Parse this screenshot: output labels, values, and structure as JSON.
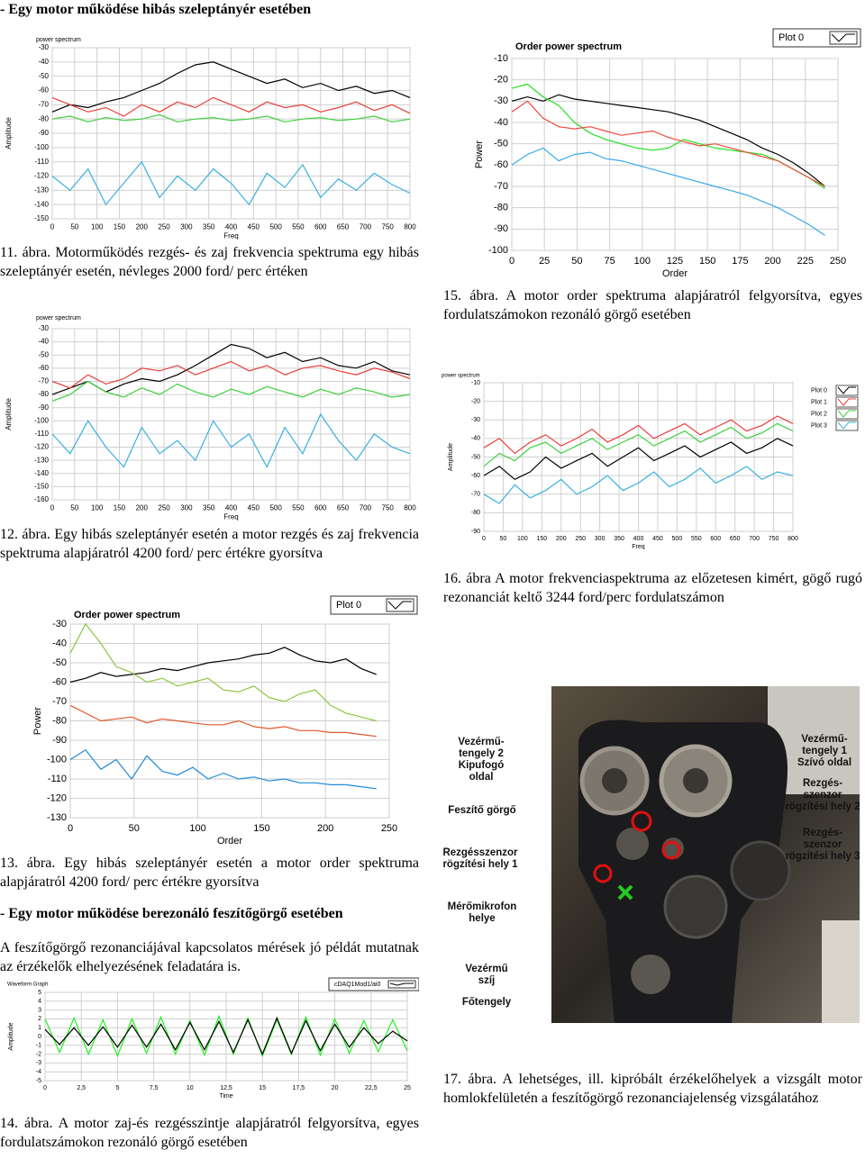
{
  "heading_1": "- Egy motor működése hibás szeleptányér esetében",
  "chart_data": [
    {
      "type": "line",
      "title": "power spectrum",
      "y_label": "Amplitude",
      "x_label": "Freq",
      "x": [
        0,
        40,
        80,
        120,
        160,
        200,
        240,
        280,
        320,
        360,
        400,
        440,
        480,
        520,
        560,
        600,
        640,
        680,
        720,
        760,
        800
      ],
      "xlim": [
        0,
        800
      ],
      "xticks": [
        0,
        50,
        100,
        150,
        200,
        250,
        300,
        350,
        400,
        450,
        500,
        550,
        600,
        650,
        700,
        750,
        800
      ],
      "ylim": [
        -150,
        -30
      ],
      "yticks": [
        -30,
        -40,
        -50,
        -60,
        -70,
        -80,
        -90,
        -100,
        -110,
        -120,
        -130,
        -140,
        -150
      ],
      "grid": true,
      "series": [
        {
          "color": "#000000",
          "values": [
            -75,
            -70,
            -72,
            -68,
            -65,
            -60,
            -55,
            -48,
            -42,
            -40,
            -45,
            -50,
            -55,
            -52,
            -58,
            -55,
            -60,
            -57,
            -62,
            -60,
            -65
          ]
        },
        {
          "color": "#e8403a",
          "values": [
            -65,
            -70,
            -75,
            -72,
            -78,
            -70,
            -75,
            -68,
            -72,
            -65,
            -70,
            -75,
            -68,
            -72,
            -70,
            -75,
            -72,
            -68,
            -74,
            -70,
            -76
          ]
        },
        {
          "color": "#3fcf3f",
          "values": [
            -80,
            -78,
            -82,
            -79,
            -81,
            -80,
            -77,
            -82,
            -80,
            -79,
            -81,
            -80,
            -78,
            -82,
            -80,
            -79,
            -81,
            -80,
            -78,
            -82,
            -80
          ]
        },
        {
          "color": "#3ab0e0",
          "values": [
            -120,
            -130,
            -115,
            -140,
            -125,
            -110,
            -135,
            -120,
            -130,
            -115,
            -125,
            -140,
            -118,
            -128,
            -112,
            -135,
            -122,
            -130,
            -118,
            -126,
            -132
          ]
        }
      ]
    },
    {
      "type": "line",
      "title": "Order power spectrum",
      "y_label": "Power",
      "x_label": "Order",
      "legend": [
        "Plot 0"
      ],
      "x": [
        0,
        12,
        24,
        36,
        48,
        60,
        72,
        84,
        96,
        108,
        120,
        132,
        144,
        156,
        168,
        180,
        192,
        204,
        216,
        228,
        240
      ],
      "xlim": [
        0,
        250
      ],
      "xticks": [
        0,
        25,
        50,
        75,
        100,
        125,
        150,
        175,
        200,
        225,
        250
      ],
      "ylim": [
        -100,
        -10
      ],
      "yticks": [
        -10,
        -20,
        -30,
        -40,
        -50,
        -60,
        -70,
        -80,
        -90,
        -100
      ],
      "grid": true,
      "series": [
        {
          "color": "#000000",
          "values": [
            -30,
            -28,
            -30,
            -27,
            -29,
            -30,
            -31,
            -32,
            -33,
            -34,
            -35,
            -37,
            -39,
            -42,
            -45,
            -48,
            -52,
            -55,
            -59,
            -64,
            -70
          ]
        },
        {
          "color": "#22e022",
          "values": [
            -24,
            -22,
            -28,
            -32,
            -40,
            -45,
            -48,
            -50,
            -52,
            -53,
            -52,
            -48,
            -50,
            -52,
            -53,
            -54,
            -55,
            -58,
            -62,
            -66,
            -71
          ]
        },
        {
          "color": "#f04a3a",
          "values": [
            -35,
            -30,
            -38,
            -42,
            -43,
            -42,
            -44,
            -46,
            -45,
            -44,
            -47,
            -49,
            -51,
            -50,
            -52,
            -54,
            -56,
            -58,
            -62,
            -66,
            -70
          ]
        },
        {
          "color": "#3aa8e8",
          "values": [
            -60,
            -55,
            -52,
            -58,
            -55,
            -54,
            -57,
            -58,
            -60,
            -62,
            -64,
            -66,
            -68,
            -70,
            -72,
            -74,
            -77,
            -80,
            -84,
            -88,
            -93
          ]
        }
      ]
    },
    {
      "type": "line",
      "title": "power spectrum",
      "y_label": "Amplitude",
      "x_label": "Freq",
      "x": [
        0,
        40,
        80,
        120,
        160,
        200,
        240,
        280,
        320,
        360,
        400,
        440,
        480,
        520,
        560,
        600,
        640,
        680,
        720,
        760,
        800
      ],
      "xlim": [
        0,
        800
      ],
      "xticks": [
        0,
        50,
        100,
        150,
        200,
        250,
        300,
        350,
        400,
        450,
        500,
        550,
        600,
        650,
        700,
        750,
        800
      ],
      "ylim": [
        -160,
        -30
      ],
      "yticks": [
        -30,
        -40,
        -50,
        -60,
        -70,
        -80,
        -90,
        -100,
        -110,
        -120,
        -130,
        -140,
        -150,
        -160
      ],
      "grid": true,
      "series": [
        {
          "color": "#000000",
          "values": [
            -80,
            -75,
            -70,
            -78,
            -72,
            -68,
            -70,
            -65,
            -58,
            -50,
            -42,
            -45,
            -52,
            -48,
            -55,
            -52,
            -58,
            -60,
            -55,
            -62,
            -65
          ]
        },
        {
          "color": "#e8403a",
          "values": [
            -70,
            -75,
            -65,
            -72,
            -68,
            -60,
            -62,
            -58,
            -65,
            -60,
            -55,
            -62,
            -58,
            -65,
            -60,
            -58,
            -62,
            -65,
            -60,
            -63,
            -68
          ]
        },
        {
          "color": "#3fcf3f",
          "values": [
            -85,
            -80,
            -70,
            -78,
            -82,
            -75,
            -80,
            -72,
            -78,
            -82,
            -76,
            -80,
            -74,
            -78,
            -82,
            -76,
            -80,
            -75,
            -78,
            -82,
            -80
          ]
        },
        {
          "color": "#3ab0e0",
          "values": [
            -110,
            -125,
            -100,
            -120,
            -135,
            -105,
            -125,
            -115,
            -130,
            -100,
            -120,
            -110,
            -135,
            -105,
            -125,
            -95,
            -115,
            -130,
            -110,
            -120,
            -125
          ]
        }
      ]
    },
    {
      "type": "line",
      "title": "power spectrum",
      "y_label": "Amplitude",
      "x_label": "Freq",
      "x": [
        0,
        40,
        80,
        120,
        160,
        200,
        240,
        280,
        320,
        360,
        400,
        440,
        480,
        520,
        560,
        600,
        640,
        680,
        720,
        760,
        800
      ],
      "xlim": [
        0,
        800
      ],
      "xticks": [
        0,
        50,
        100,
        150,
        200,
        250,
        300,
        350,
        400,
        450,
        500,
        550,
        600,
        650,
        700,
        750,
        800
      ],
      "ylim": [
        -90,
        -10
      ],
      "yticks": [
        -10,
        -20,
        -30,
        -40,
        -50,
        -60,
        -70,
        -80,
        -90
      ],
      "grid": true,
      "series": [
        {
          "name": "Plot 0",
          "color": "#000000",
          "values": [
            -60,
            -55,
            -62,
            -58,
            -50,
            -56,
            -52,
            -48,
            -55,
            -50,
            -45,
            -52,
            -48,
            -44,
            -50,
            -46,
            -42,
            -48,
            -45,
            -40,
            -44
          ]
        },
        {
          "name": "Plot 1",
          "color": "#e8403a",
          "values": [
            -45,
            -40,
            -48,
            -42,
            -38,
            -44,
            -40,
            -35,
            -42,
            -38,
            -33,
            -40,
            -36,
            -32,
            -38,
            -34,
            -30,
            -36,
            -33,
            -28,
            -32
          ]
        },
        {
          "name": "Plot 2",
          "color": "#3fcf3f",
          "values": [
            -55,
            -48,
            -52,
            -45,
            -42,
            -48,
            -44,
            -40,
            -46,
            -42,
            -38,
            -44,
            -40,
            -36,
            -42,
            -38,
            -34,
            -40,
            -37,
            -32,
            -36
          ]
        },
        {
          "name": "Plot 3",
          "color": "#3ab0e0",
          "values": [
            -70,
            -75,
            -65,
            -72,
            -68,
            -62,
            -70,
            -66,
            -60,
            -68,
            -64,
            -58,
            -66,
            -62,
            -56,
            -64,
            -60,
            -55,
            -62,
            -58,
            -60
          ]
        }
      ]
    },
    {
      "type": "line",
      "title": "Order power spectrum",
      "y_label": "Power",
      "x_label": "Order",
      "legend": [
        "Plot 0"
      ],
      "x": [
        0,
        12,
        24,
        36,
        48,
        60,
        72,
        84,
        96,
        108,
        120,
        132,
        144,
        156,
        168,
        180,
        192,
        204,
        216,
        228,
        240
      ],
      "xlim": [
        0,
        250
      ],
      "xticks": [
        0,
        50,
        100,
        150,
        200,
        250
      ],
      "ylim": [
        -130,
        -30
      ],
      "yticks": [
        -30,
        -40,
        -50,
        -60,
        -70,
        -80,
        -90,
        -100,
        -110,
        -120,
        -130
      ],
      "grid": true,
      "series": [
        {
          "color": "#000000",
          "values": [
            -60,
            -58,
            -55,
            -57,
            -56,
            -55,
            -53,
            -54,
            -52,
            -50,
            -49,
            -48,
            -46,
            -45,
            -42,
            -46,
            -49,
            -50,
            -48,
            -53,
            -56
          ]
        },
        {
          "color": "#8cc63f",
          "values": [
            -45,
            -30,
            -40,
            -52,
            -55,
            -60,
            -58,
            -62,
            -60,
            -58,
            -64,
            -65,
            -62,
            -68,
            -70,
            -66,
            -64,
            -72,
            -76,
            -78,
            -80
          ]
        },
        {
          "color": "#e2572b",
          "values": [
            -72,
            -76,
            -80,
            -79,
            -78,
            -81,
            -79,
            -80,
            -81,
            -82,
            -82,
            -80,
            -83,
            -84,
            -83,
            -85,
            -85,
            -86,
            -86,
            -87,
            -88
          ]
        },
        {
          "color": "#1f8ad8",
          "values": [
            -100,
            -95,
            -105,
            -100,
            -110,
            -98,
            -106,
            -108,
            -104,
            -110,
            -107,
            -110,
            -109,
            -111,
            -110,
            -112,
            -112,
            -113,
            -113,
            -114,
            -115
          ]
        }
      ]
    },
    {
      "type": "line",
      "title": "Waveform Graph",
      "y_label": "Amplitude",
      "x_label": "Time",
      "legend": [
        "cDAQ1Mod1/ai0"
      ],
      "x": [
        0,
        1,
        2,
        3,
        4,
        5,
        6,
        7,
        8,
        9,
        10,
        11,
        12,
        13,
        14,
        15,
        16,
        17,
        18,
        19,
        20,
        21,
        22,
        23,
        24,
        25
      ],
      "xlim": [
        0,
        25
      ],
      "xticks": [
        0,
        {
          "value": 2.5,
          "label": "2,5"
        },
        5,
        {
          "value": 7.5,
          "label": "7,5"
        },
        10,
        {
          "value": 12.5,
          "label": "12,5"
        },
        15,
        {
          "value": 17.5,
          "label": "17,5"
        },
        20,
        {
          "value": 22.5,
          "label": "22,5"
        },
        25
      ],
      "ylim": [
        -5,
        5
      ],
      "yticks": [
        5,
        4,
        3,
        2,
        1,
        0,
        -1,
        -2,
        -3,
        -4,
        -5
      ],
      "grid": true,
      "series": [
        {
          "color": "#22ee22",
          "values": [
            2,
            -1.8,
            2.1,
            -2,
            1.9,
            -2.2,
            2,
            -1.9,
            2.2,
            -2,
            1.8,
            -2.1,
            2.3,
            -2,
            2.1,
            -2.2,
            1.9,
            -2,
            2.2,
            -2.1,
            2,
            -1.9,
            1.8,
            -1.7,
            1.9,
            -1.6
          ]
        },
        {
          "color": "#000000",
          "values": [
            0.8,
            -0.9,
            1,
            -1,
            1.1,
            -1.2,
            1.3,
            -1.2,
            1.4,
            -1.5,
            1.6,
            -1.5,
            1.7,
            -1.8,
            1.9,
            -2,
            2.1,
            -1.9,
            1.8,
            -1.6,
            1.4,
            -1.2,
            1,
            -0.8,
            0.6,
            -0.5
          ]
        }
      ]
    }
  ],
  "captions": {
    "fig_11": "11. ábra. Motorműködés rezgés- és zaj frekvencia spektruma egy hibás szeleptányér esetén, névleges 2000 ford/ perc értéken",
    "fig_15": "15. ábra. A motor order spektruma alapjáratról felgyorsítva, egyes fordulatszámokon rezonáló görgő esetében",
    "fig_12": "12. ábra. Egy hibás szeleptányér esetén a motor rezgés és zaj frekvencia spektruma alapjáratról 4200 ford/ perc értékre gyorsítva",
    "fig_16": "16. ábra A motor frekvenciaspektruma az előzetesen kimért, gögő rugó rezonanciát keltő 3244 ford/perc fordulatszámon",
    "fig_13": "13. ábra. Egy hibás szeleptányér esetén a motor order spektruma alapjáratról 4200 ford/ perc értékre gyorsítva",
    "fig_14": "14. ábra. A motor zaj-és rezgésszintje alapjáratról felgyorsítva, egyes fordulatszámokon rezonáló görgő esetében",
    "fig_17": "17. ábra. A lehetséges, ill. kipróbált érzékelőhelyek a vizsgált motor homlokfelületén a feszítőgörgő rezonanciajelenség vizsgálatához"
  },
  "heading_2": "- Egy motor működése berezonáló feszítőgörgő esetében",
  "paragraph": "A feszítőgörgő rezonanciájával kapcsolatos mérések jó példát mutatnak az érzékelők elhelyezésének feladatára is.",
  "figure_17": {
    "labels": [
      [
        "Vezérmű-",
        "tengely 2",
        "Kipufogó",
        "oldal"
      ],
      [
        "Vezérmű-",
        "tengely 1",
        "Szívó oldal"
      ],
      [
        "Rezgés-",
        "szenzor",
        "rögzítési hely 2"
      ],
      [
        "Feszítő görgő"
      ],
      [
        "Rezgés-",
        "szenzor",
        "rögzítési hely 3"
      ],
      [
        "Rezgésszenzor",
        "rögzítési hely 1"
      ],
      [
        "Mérőmikrofon",
        "helye"
      ],
      [
        "Vezérmű",
        "szíj"
      ],
      [
        "Főtengely"
      ]
    ]
  }
}
